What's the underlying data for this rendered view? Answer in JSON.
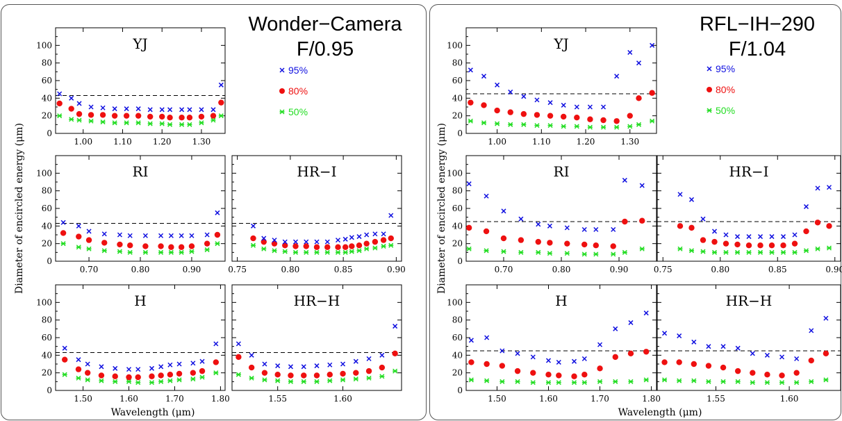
{
  "legend": {
    "items": [
      "95%",
      "80%",
      "50%"
    ],
    "colors": [
      "#1010e0",
      "#ee1010",
      "#22dd22"
    ]
  },
  "chart_data": [
    {
      "name": "Wonder-Camera",
      "title": "Wonder−Camera",
      "subtitle": "F/0.95",
      "ylabel": "Diameter of encircled energy (μm)",
      "xlabel": "Wavelength (μm)",
      "threshold": 43,
      "panels": [
        {
          "type": "scatter",
          "label": "YJ",
          "ylim": [
            0,
            120
          ],
          "yticks": [
            0,
            20,
            40,
            60,
            80,
            100
          ],
          "yticklabels": true,
          "xlim": [
            0.93,
            1.36
          ],
          "xticks": [
            1.0,
            1.1,
            1.2,
            1.3
          ],
          "x": [
            0.94,
            0.97,
            0.99,
            1.02,
            1.05,
            1.08,
            1.11,
            1.14,
            1.17,
            1.2,
            1.22,
            1.25,
            1.27,
            1.3,
            1.33,
            1.35
          ],
          "p95": [
            45,
            40,
            34,
            30,
            29,
            28,
            28,
            28,
            27,
            27,
            27,
            27,
            27,
            27,
            27,
            55
          ],
          "p80": [
            34,
            28,
            22,
            21,
            21,
            20,
            20,
            20,
            19,
            19,
            18,
            18,
            18,
            19,
            20,
            35
          ],
          "p50": [
            20,
            16,
            15,
            14,
            13,
            12,
            12,
            12,
            11,
            11,
            10,
            10,
            10,
            12,
            15,
            20
          ]
        },
        {
          "type": "scatter",
          "label": "RI",
          "ylim": [
            0,
            120
          ],
          "yticks": [
            0,
            20,
            40,
            60,
            80,
            100
          ],
          "yticklabels": true,
          "xlim": [
            0.635,
            0.965
          ],
          "xticks": [
            0.7,
            0.8,
            0.9
          ],
          "x": [
            0.65,
            0.68,
            0.7,
            0.73,
            0.76,
            0.78,
            0.81,
            0.84,
            0.86,
            0.88,
            0.9,
            0.93,
            0.95
          ],
          "p95": [
            44,
            40,
            34,
            31,
            30,
            29,
            29,
            29,
            29,
            29,
            29,
            30,
            55
          ],
          "p80": [
            32,
            28,
            24,
            21,
            19,
            18,
            17,
            17,
            16,
            16,
            17,
            20,
            30
          ],
          "p50": [
            20,
            16,
            14,
            12,
            11,
            10,
            10,
            10,
            10,
            10,
            11,
            13,
            20
          ]
        },
        {
          "type": "scatter",
          "label": "HR−I",
          "ylim": [
            0,
            120
          ],
          "yticks": [
            0,
            20,
            40,
            60,
            80,
            100
          ],
          "yticklabels": false,
          "xlim": [
            0.745,
            0.905
          ],
          "xticks": [
            0.75,
            0.8,
            0.85,
            0.9
          ],
          "x": [
            0.765,
            0.775,
            0.785,
            0.795,
            0.805,
            0.815,
            0.825,
            0.835,
            0.845,
            0.852,
            0.858,
            0.865,
            0.872,
            0.88,
            0.888,
            0.895
          ],
          "p95": [
            40,
            26,
            24,
            22,
            22,
            22,
            22,
            22,
            24,
            25,
            27,
            28,
            30,
            31,
            31,
            52
          ],
          "p80": [
            26,
            22,
            20,
            18,
            17,
            17,
            16,
            16,
            16,
            16,
            17,
            18,
            20,
            22,
            24,
            26
          ],
          "p50": [
            18,
            14,
            12,
            11,
            10,
            10,
            10,
            10,
            10,
            10,
            11,
            12,
            14,
            15,
            17,
            18
          ]
        },
        {
          "type": "scatter",
          "label": "H",
          "ylim": [
            0,
            120
          ],
          "yticks": [
            0,
            20,
            40,
            60,
            80,
            100
          ],
          "yticklabels": true,
          "xlim": [
            1.44,
            1.81
          ],
          "xticks": [
            1.5,
            1.6,
            1.7,
            1.8
          ],
          "x": [
            1.46,
            1.49,
            1.51,
            1.54,
            1.57,
            1.6,
            1.62,
            1.65,
            1.67,
            1.69,
            1.71,
            1.74,
            1.76,
            1.79
          ],
          "p95": [
            48,
            35,
            30,
            27,
            25,
            24,
            24,
            25,
            27,
            29,
            30,
            31,
            33,
            53
          ],
          "p80": [
            35,
            24,
            20,
            17,
            16,
            15,
            15,
            16,
            17,
            18,
            19,
            20,
            22,
            32
          ],
          "p50": [
            18,
            14,
            12,
            11,
            10,
            10,
            9,
            9,
            10,
            11,
            12,
            13,
            15,
            20
          ]
        },
        {
          "type": "scatter",
          "label": "HR−H",
          "ylim": [
            0,
            120
          ],
          "yticks": [
            0,
            20,
            40,
            60,
            80,
            100
          ],
          "yticklabels": false,
          "xlim": [
            1.515,
            1.645
          ],
          "xticks": [
            1.55,
            1.6
          ],
          "x": [
            1.52,
            1.53,
            1.54,
            1.55,
            1.56,
            1.57,
            1.58,
            1.59,
            1.6,
            1.61,
            1.62,
            1.63,
            1.64
          ],
          "p95": [
            53,
            40,
            30,
            28,
            27,
            27,
            28,
            29,
            30,
            33,
            36,
            40,
            73
          ],
          "p80": [
            38,
            26,
            20,
            18,
            17,
            17,
            17,
            18,
            19,
            20,
            22,
            26,
            42
          ],
          "p50": [
            18,
            14,
            12,
            11,
            10,
            10,
            10,
            11,
            12,
            13,
            14,
            16,
            22
          ]
        }
      ]
    },
    {
      "name": "RFL-IH-290",
      "title": "RFL−IH−290",
      "subtitle": "F/1.04",
      "ylabel": "Diameter of encircled energy (μm)",
      "xlabel": "Wavelength (μm)",
      "threshold": 45,
      "panels": [
        {
          "type": "scatter",
          "label": "YJ",
          "ylim": [
            0,
            120
          ],
          "yticks": [
            0,
            20,
            40,
            60,
            80,
            100
          ],
          "yticklabels": true,
          "xlim": [
            0.93,
            1.36
          ],
          "xticks": [
            1.0,
            1.1,
            1.2,
            1.3
          ],
          "x": [
            0.94,
            0.97,
            1.0,
            1.03,
            1.06,
            1.09,
            1.12,
            1.15,
            1.18,
            1.21,
            1.24,
            1.27,
            1.3,
            1.32,
            1.35
          ],
          "p95": [
            72,
            65,
            55,
            47,
            42,
            38,
            35,
            32,
            30,
            30,
            30,
            65,
            92,
            80,
            100
          ],
          "p80": [
            35,
            32,
            26,
            24,
            22,
            21,
            20,
            19,
            18,
            16,
            15,
            14,
            20,
            40,
            46
          ],
          "p50": [
            14,
            12,
            11,
            10,
            10,
            9,
            9,
            8,
            8,
            7,
            7,
            7,
            8,
            10,
            14
          ]
        },
        {
          "type": "scatter",
          "label": "RI",
          "ylim": [
            0,
            120
          ],
          "yticks": [
            0,
            20,
            40,
            60,
            80,
            100
          ],
          "yticklabels": true,
          "xlim": [
            0.635,
            0.965
          ],
          "xticks": [
            0.7,
            0.8,
            0.9
          ],
          "x": [
            0.64,
            0.67,
            0.7,
            0.73,
            0.76,
            0.78,
            0.81,
            0.84,
            0.86,
            0.89,
            0.91,
            0.94
          ],
          "p95": [
            88,
            74,
            57,
            48,
            42,
            40,
            38,
            36,
            36,
            36,
            92,
            86
          ],
          "p80": [
            38,
            34,
            26,
            24,
            22,
            21,
            20,
            19,
            18,
            17,
            45,
            46
          ],
          "p50": [
            14,
            12,
            11,
            10,
            10,
            9,
            9,
            8,
            8,
            8,
            10,
            14
          ]
        },
        {
          "type": "scatter",
          "label": "HR−I",
          "ylim": [
            0,
            120
          ],
          "yticks": [
            0,
            20,
            40,
            60,
            80,
            100
          ],
          "yticklabels": false,
          "xlim": [
            0.745,
            0.905
          ],
          "xticks": [
            0.75,
            0.8,
            0.85,
            0.9
          ],
          "x": [
            0.765,
            0.775,
            0.785,
            0.795,
            0.805,
            0.815,
            0.825,
            0.835,
            0.845,
            0.855,
            0.865,
            0.875,
            0.885,
            0.895
          ],
          "p95": [
            76,
            70,
            48,
            34,
            30,
            28,
            28,
            28,
            28,
            28,
            30,
            62,
            83,
            84
          ],
          "p80": [
            40,
            38,
            24,
            22,
            20,
            19,
            18,
            18,
            18,
            18,
            20,
            34,
            44,
            40
          ],
          "p50": [
            14,
            12,
            11,
            10,
            10,
            10,
            10,
            10,
            10,
            10,
            10,
            12,
            14,
            15
          ]
        },
        {
          "type": "scatter",
          "label": "H",
          "ylim": [
            0,
            120
          ],
          "yticks": [
            0,
            20,
            40,
            60,
            80,
            100
          ],
          "yticklabels": true,
          "xlim": [
            1.44,
            1.81
          ],
          "xticks": [
            1.5,
            1.6,
            1.7,
            1.8
          ],
          "x": [
            1.45,
            1.48,
            1.51,
            1.54,
            1.57,
            1.6,
            1.62,
            1.65,
            1.67,
            1.7,
            1.73,
            1.76,
            1.79
          ],
          "p95": [
            57,
            60,
            45,
            42,
            38,
            34,
            32,
            33,
            36,
            52,
            70,
            77,
            88
          ],
          "p80": [
            32,
            30,
            28,
            22,
            20,
            18,
            17,
            16,
            18,
            25,
            38,
            42,
            44
          ],
          "p50": [
            12,
            11,
            10,
            10,
            9,
            9,
            9,
            9,
            9,
            10,
            10,
            10,
            12
          ]
        },
        {
          "type": "scatter",
          "label": "HR−H",
          "ylim": [
            0,
            120
          ],
          "yticks": [
            0,
            20,
            40,
            60,
            80,
            100
          ],
          "yticklabels": false,
          "xlim": [
            1.51,
            1.635
          ],
          "xticks": [
            1.55,
            1.6
          ],
          "x": [
            1.515,
            1.525,
            1.535,
            1.545,
            1.555,
            1.565,
            1.575,
            1.585,
            1.595,
            1.605,
            1.615,
            1.625
          ],
          "p95": [
            65,
            62,
            55,
            50,
            50,
            48,
            42,
            40,
            38,
            36,
            68,
            82
          ],
          "p80": [
            32,
            32,
            30,
            28,
            26,
            22,
            20,
            18,
            17,
            20,
            34,
            42
          ],
          "p50": [
            12,
            11,
            11,
            10,
            10,
            10,
            9,
            9,
            9,
            9,
            10,
            12
          ]
        }
      ]
    }
  ]
}
